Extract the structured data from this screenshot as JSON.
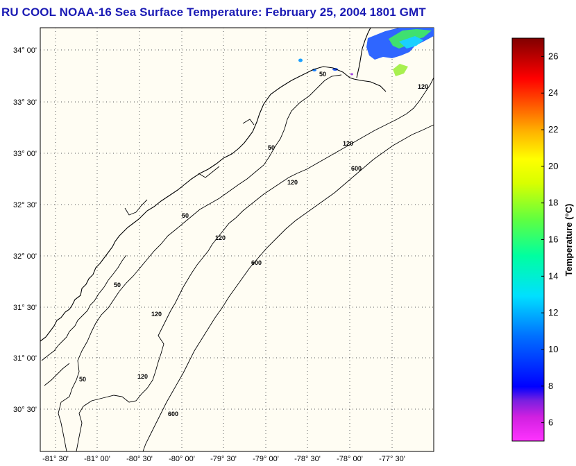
{
  "title": "RU COOL  NOAA-16  Sea Surface Temperature:  February 25, 2004 1801 GMT",
  "map": {
    "lat_labels": [
      "34° 00'",
      "33° 30'",
      "33° 00'",
      "32° 30'",
      "32° 00'",
      "31° 30'",
      "31° 00'",
      "30° 30'"
    ],
    "lon_labels": [
      "-81° 30'",
      "-81° 00'",
      "-80° 30'",
      "-80° 00'",
      "-79° 30'",
      "-79° 00'",
      "-78° 30'",
      "-78° 00'",
      "-77° 30'"
    ],
    "contour_labels": [
      "50",
      "50",
      "50",
      "50",
      "50",
      "120",
      "120",
      "120",
      "120",
      "120",
      "120",
      "600",
      "600",
      "600"
    ]
  },
  "colorbar": {
    "label": "Temperature (°C)",
    "ticks": [
      "26",
      "24",
      "22",
      "20",
      "18",
      "16",
      "14",
      "12",
      "10",
      "8",
      "6"
    ],
    "range": [
      5,
      27
    ],
    "tick_values": [
      26,
      24,
      22,
      20,
      18,
      16,
      14,
      12,
      10,
      8,
      6
    ]
  }
}
